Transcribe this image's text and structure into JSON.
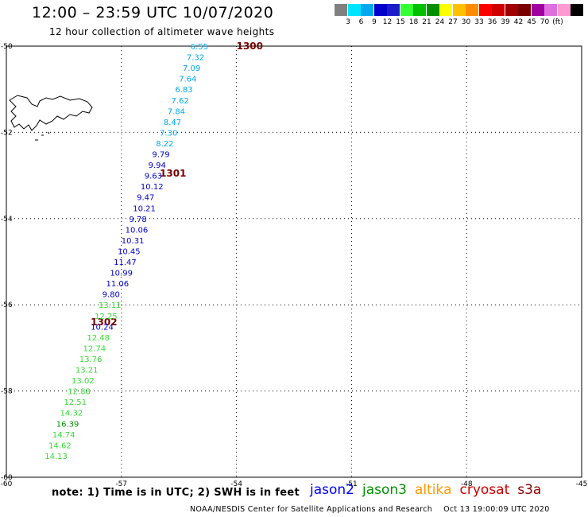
{
  "header": {
    "title": "12:00 – 23:59 UTC 10/07/2020",
    "subtitle": "12 hour collection of altimeter wave heights"
  },
  "color_scale": {
    "colors": [
      "#808080",
      "#00e5ff",
      "#00a8f0",
      "#0000cc",
      "#1c1cc8",
      "#33ff33",
      "#00c000",
      "#009000",
      "#ffff00",
      "#ffc000",
      "#ff8c00",
      "#ff0000",
      "#d00000",
      "#a00000",
      "#7a0000",
      "#a000a0",
      "#e070e0",
      "#ff9ad2",
      "#000000"
    ],
    "labels": [
      "3",
      "6",
      "9",
      "12",
      "15",
      "18",
      "21",
      "24",
      "27",
      "30",
      "33",
      "36",
      "39",
      "42",
      "45",
      "70",
      "(ft)"
    ]
  },
  "axes": {
    "lon_ticks": [
      "-60",
      "-57",
      "-54",
      "-51",
      "-48",
      "-45"
    ],
    "lat_ticks": [
      "-50",
      "-52",
      "-54",
      "-56",
      "-58",
      "-60"
    ]
  },
  "passes": [
    {
      "label": "1300",
      "lon": -54,
      "lat": -50
    },
    {
      "label": "1301",
      "lon": -56,
      "lat": -52.95
    },
    {
      "label": "1302",
      "lon": -57.8,
      "lat": -56.4
    }
  ],
  "wave_heights": [
    {
      "v": "6.55",
      "c": "#00a8f0",
      "lon": -55.2,
      "lat": -50
    },
    {
      "v": "7.32",
      "c": "#00a8f0",
      "lon": -55.3,
      "lat": -50.25
    },
    {
      "v": "7.09",
      "c": "#00a8f0",
      "lon": -55.4,
      "lat": -50.5
    },
    {
      "v": "7.64",
      "c": "#00a8f0",
      "lon": -55.5,
      "lat": -50.75
    },
    {
      "v": "6.83",
      "c": "#00a8f0",
      "lon": -55.6,
      "lat": -51
    },
    {
      "v": "7.62",
      "c": "#00a8f0",
      "lon": -55.7,
      "lat": -51.25
    },
    {
      "v": "7.84",
      "c": "#00a8f0",
      "lon": -55.8,
      "lat": -51.5
    },
    {
      "v": "8.47",
      "c": "#00a8f0",
      "lon": -55.9,
      "lat": -51.75
    },
    {
      "v": "7.30",
      "c": "#00a8f0",
      "lon": -56,
      "lat": -52
    },
    {
      "v": "8.22",
      "c": "#00a8f0",
      "lon": -56.1,
      "lat": -52.25
    },
    {
      "v": "9.79",
      "c": "#0000cc",
      "lon": -56.2,
      "lat": -52.5
    },
    {
      "v": "9.94",
      "c": "#0000cc",
      "lon": -56.3,
      "lat": -52.75
    },
    {
      "v": "9.63",
      "c": "#0000cc",
      "lon": -56.4,
      "lat": -53
    },
    {
      "v": "10.12",
      "c": "#0000cc",
      "lon": -56.5,
      "lat": -53.25
    },
    {
      "v": "9.47",
      "c": "#0000cc",
      "lon": -56.6,
      "lat": -53.5
    },
    {
      "v": "10.21",
      "c": "#0000cc",
      "lon": -56.7,
      "lat": -53.75
    },
    {
      "v": "9.78",
      "c": "#0000cc",
      "lon": -56.8,
      "lat": -54
    },
    {
      "v": "10.06",
      "c": "#0000cc",
      "lon": -56.9,
      "lat": -54.25
    },
    {
      "v": "10.31",
      "c": "#0000cc",
      "lon": -57,
      "lat": -54.5
    },
    {
      "v": "10.45",
      "c": "#0000cc",
      "lon": -57.1,
      "lat": -54.75
    },
    {
      "v": "11.47",
      "c": "#0000cc",
      "lon": -57.2,
      "lat": -55
    },
    {
      "v": "10.99",
      "c": "#0000cc",
      "lon": -57.3,
      "lat": -55.25
    },
    {
      "v": "11.06",
      "c": "#0000cc",
      "lon": -57.4,
      "lat": -55.5
    },
    {
      "v": "9.80",
      "c": "#0000cc",
      "lon": -57.5,
      "lat": -55.75
    },
    {
      "v": "13.11",
      "c": "#33dd33",
      "lon": -57.6,
      "lat": -56
    },
    {
      "v": "12.25",
      "c": "#33dd33",
      "lon": -57.7,
      "lat": -56.25
    },
    {
      "v": "10.24",
      "c": "#0000cc",
      "lon": -57.8,
      "lat": -56.5
    },
    {
      "v": "12.48",
      "c": "#33dd33",
      "lon": -57.9,
      "lat": -56.75
    },
    {
      "v": "12.74",
      "c": "#33dd33",
      "lon": -58,
      "lat": -57
    },
    {
      "v": "13.76",
      "c": "#33dd33",
      "lon": -58.1,
      "lat": -57.25
    },
    {
      "v": "13.21",
      "c": "#33dd33",
      "lon": -58.2,
      "lat": -57.5
    },
    {
      "v": "13.02",
      "c": "#33dd33",
      "lon": -58.3,
      "lat": -57.75
    },
    {
      "v": "12.88",
      "c": "#33dd33",
      "lon": -58.4,
      "lat": -58
    },
    {
      "v": "12.51",
      "c": "#33dd33",
      "lon": -58.5,
      "lat": -58.25
    },
    {
      "v": "14.32",
      "c": "#33dd33",
      "lon": -58.6,
      "lat": -58.5
    },
    {
      "v": "16.39",
      "c": "#009000",
      "lon": -58.7,
      "lat": -58.75
    },
    {
      "v": "14.74",
      "c": "#33dd33",
      "lon": -58.8,
      "lat": -59
    },
    {
      "v": "14.62",
      "c": "#33dd33",
      "lon": -58.9,
      "lat": -59.25
    },
    {
      "v": "14.13",
      "c": "#33dd33",
      "lon": -59,
      "lat": -59.5
    }
  ],
  "footer": {
    "note": "note: 1) Time is in UTC; 2) SWH is in feet",
    "satellites": [
      {
        "name": "jason2",
        "color": "#0000ff"
      },
      {
        "name": "jason3",
        "color": "#009000"
      },
      {
        "name": "altika",
        "color": "#ff9900"
      },
      {
        "name": "cryosat",
        "color": "#cc0000"
      },
      {
        "name": "s3a",
        "color": "#8a0000"
      }
    ],
    "credit": "NOAA/NESDIS Center for Satellite Applications and Research",
    "timestamp": "Oct 13 19:00:09 UTC 2020"
  }
}
